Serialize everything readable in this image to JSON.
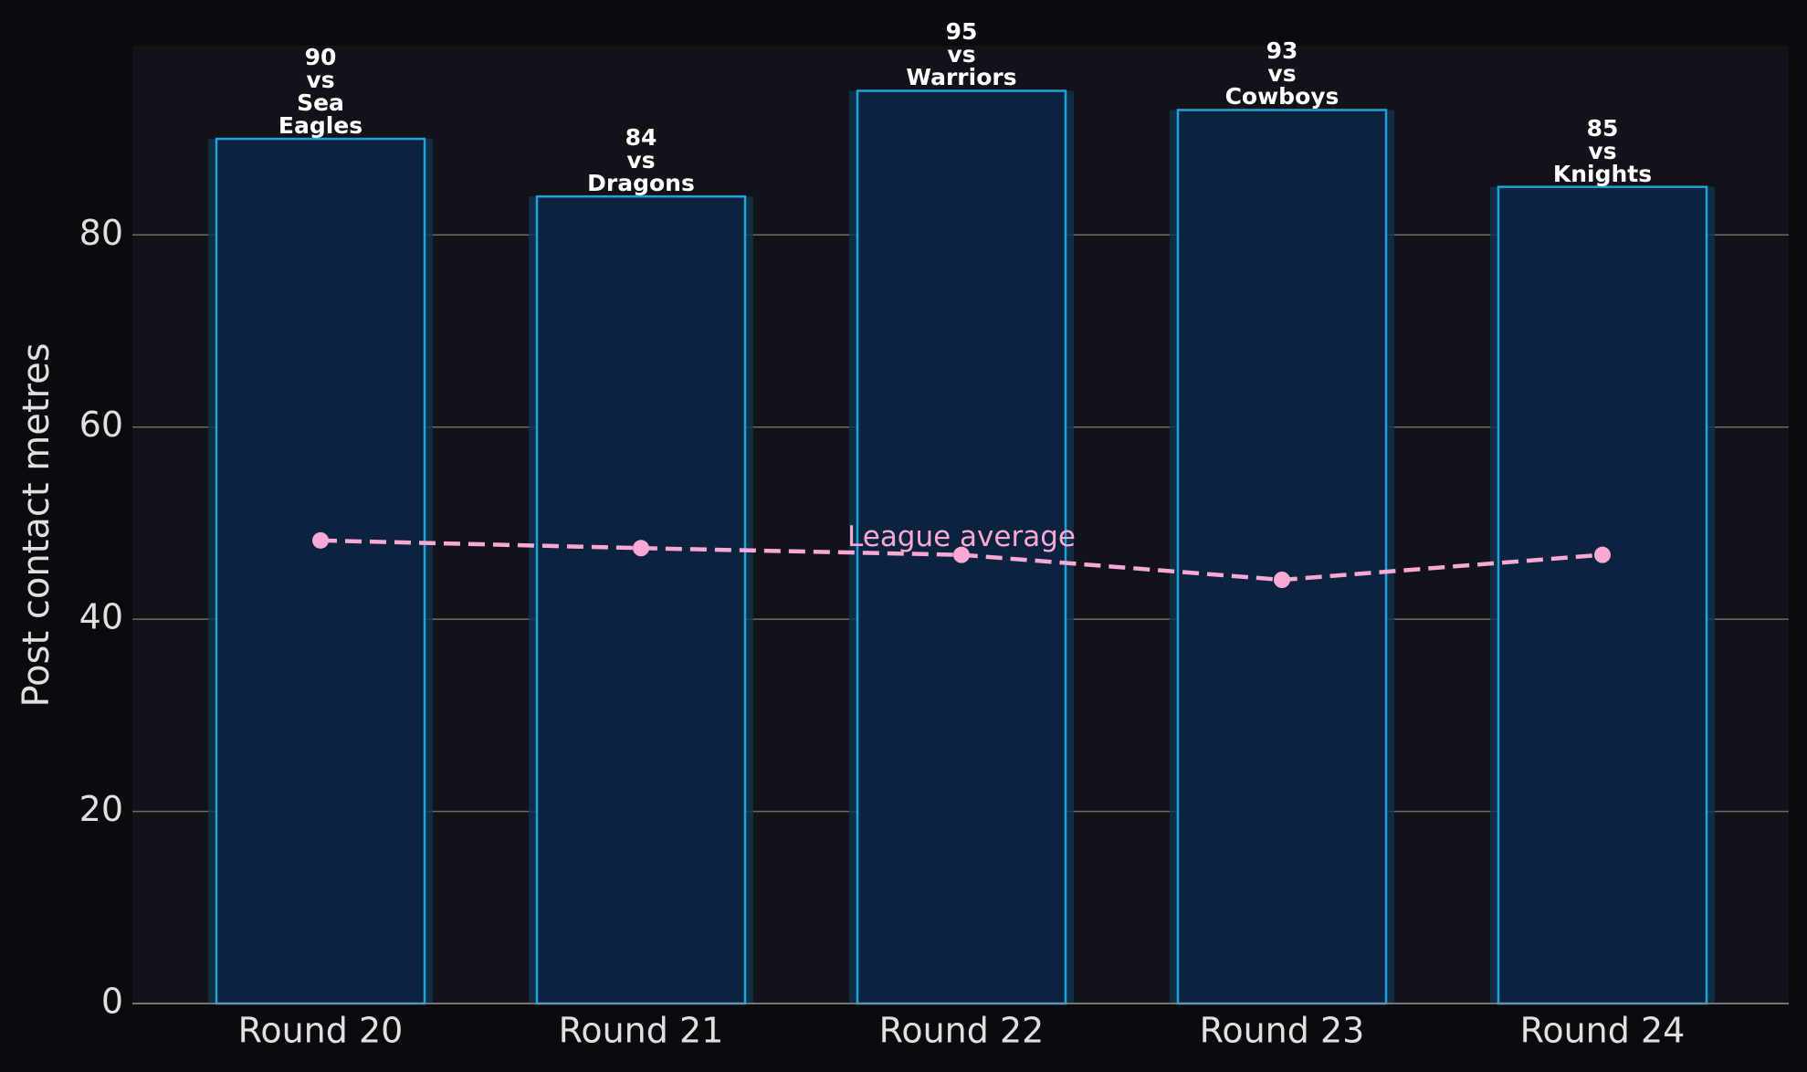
{
  "chart_data": {
    "type": "bar",
    "y_label": "Post contact metres",
    "categories": [
      "Round 20",
      "Round 21",
      "Round 22",
      "Round 23",
      "Round 24"
    ],
    "values": [
      90,
      84,
      95,
      93,
      85
    ],
    "value_labels": [
      "90\nvs\nSea\nEagles",
      "84\nvs\nDragons",
      "95\nvs\nWarriors",
      "93\nvs\nCowboys",
      "85\nvs\nKnights"
    ],
    "color": "#0c2340",
    "edge_color": "#1fa3d8",
    "overlay": {
      "type": "line",
      "name": "League average",
      "values": [
        48.2,
        47.4,
        46.7,
        44.1,
        46.7
      ],
      "color": "#f9a8d4",
      "dashed": true
    },
    "ylim": [
      0,
      99.7
    ],
    "yticks": [
      0,
      20,
      40,
      60,
      80
    ],
    "grid": true
  }
}
